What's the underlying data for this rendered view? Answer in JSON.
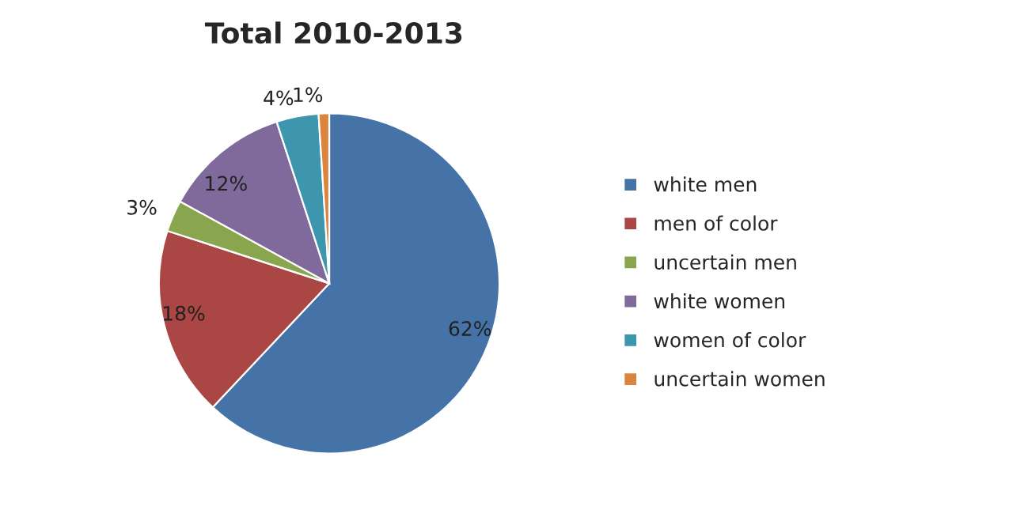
{
  "chart_data": {
    "type": "pie",
    "title": "Total 2010-2013",
    "categories": [
      "white men",
      "men of color",
      "uncertain men",
      "white women",
      "women of color",
      "uncertain women"
    ],
    "values": [
      62,
      18,
      3,
      12,
      4,
      1
    ],
    "colors": [
      "#4572a7",
      "#aa4643",
      "#89a54e",
      "#80699b",
      "#3d96ae",
      "#db843d"
    ],
    "value_labels": [
      "62%",
      "18%",
      "3%",
      "12%",
      "4%",
      "1%"
    ],
    "legend": "right"
  }
}
